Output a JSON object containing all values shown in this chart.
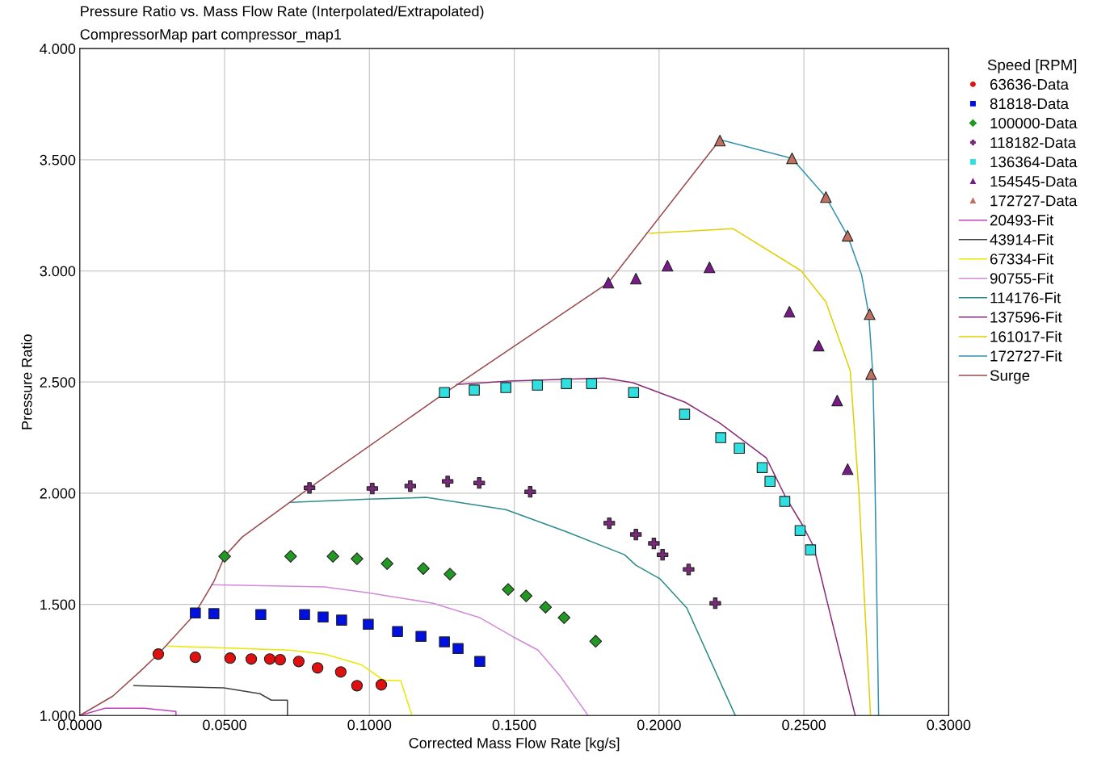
{
  "chart_data": {
    "type": "scatter",
    "title": "Pressure Ratio vs. Mass Flow Rate (Interpolated/Extrapolated)",
    "subtitle": "CompressorMap part compressor_map1",
    "xlabel": "Corrected Mass Flow Rate [kg/s]",
    "ylabel": "Pressure Ratio",
    "legend_title": "Speed [RPM]",
    "xlim": [
      0,
      0.3
    ],
    "ylim": [
      1,
      4
    ],
    "xticks": [
      {
        "value": 0,
        "label": "0.0000"
      },
      {
        "value": 0.05,
        "label": "0.0500"
      },
      {
        "value": 0.1,
        "label": "0.1000"
      },
      {
        "value": 0.15,
        "label": "0.1500"
      },
      {
        "value": 0.2,
        "label": "0.2000"
      },
      {
        "value": 0.25,
        "label": "0.2500"
      },
      {
        "value": 0.3,
        "label": "0.3000"
      }
    ],
    "yticks": [
      {
        "value": 1,
        "label": "1.000"
      },
      {
        "value": 1.5,
        "label": "1.500"
      },
      {
        "value": 2,
        "label": "2.000"
      },
      {
        "value": 2.5,
        "label": "2.500"
      },
      {
        "value": 3,
        "label": "3.000"
      },
      {
        "value": 3.5,
        "label": "3.500"
      },
      {
        "value": 4,
        "label": "4.000"
      }
    ],
    "grid": true,
    "legend": "right",
    "series": [
      {
        "name": "63636-Data",
        "marker": "circle",
        "color": "#e01010",
        "x": [
          0.0271,
          0.0399,
          0.0519,
          0.0592,
          0.0656,
          0.0692,
          0.0756,
          0.0821,
          0.0901,
          0.0957,
          0.1041
        ],
        "values": [
          1.276,
          1.262,
          1.258,
          1.254,
          1.254,
          1.251,
          1.243,
          1.214,
          1.196,
          1.134,
          1.138
        ]
      },
      {
        "name": "81818-Data",
        "marker": "square",
        "color": "#0010e0",
        "x": [
          0.0399,
          0.0463,
          0.0625,
          0.0776,
          0.084,
          0.0904,
          0.0996,
          0.1097,
          0.1178,
          0.1259,
          0.1306,
          0.1381
        ],
        "values": [
          1.461,
          1.458,
          1.454,
          1.454,
          1.443,
          1.429,
          1.41,
          1.378,
          1.356,
          1.331,
          1.301,
          1.243
        ]
      },
      {
        "name": "100000-Data",
        "marker": "diamond",
        "color": "#229922",
        "x": [
          0.05,
          0.0728,
          0.0874,
          0.0957,
          0.1061,
          0.1186,
          0.1278,
          0.1479,
          0.1541,
          0.1608,
          0.1672,
          0.1781
        ],
        "values": [
          1.716,
          1.716,
          1.716,
          1.705,
          1.683,
          1.661,
          1.636,
          1.567,
          1.538,
          1.487,
          1.44,
          1.334
        ]
      },
      {
        "name": "118182-Data",
        "marker": "cross",
        "color": "#7a2a7a",
        "x": [
          0.0793,
          0.101,
          0.1141,
          0.127,
          0.1379,
          0.1555,
          0.1828,
          0.192,
          0.1982,
          0.2012,
          0.2102,
          0.2194
        ],
        "values": [
          2.024,
          2.021,
          2.032,
          2.053,
          2.046,
          2.006,
          1.865,
          1.814,
          1.774,
          1.723,
          1.657,
          1.505
        ]
      },
      {
        "name": "136364-Data",
        "marker": "square",
        "color": "#30e0e0",
        "x": [
          0.1259,
          0.1362,
          0.1471,
          0.158,
          0.168,
          0.1767,
          0.1912,
          0.2088,
          0.2213,
          0.2277,
          0.2356,
          0.2383,
          0.2434,
          0.2487,
          0.2523
        ],
        "values": [
          2.453,
          2.464,
          2.475,
          2.486,
          2.493,
          2.493,
          2.453,
          2.355,
          2.25,
          2.202,
          2.115,
          2.053,
          1.963,
          1.832,
          1.745
        ]
      },
      {
        "name": "154545-Data",
        "marker": "triangle",
        "color": "#7a1a8a",
        "x": [
          0.1825,
          0.192,
          0.2029,
          0.2174,
          0.245,
          0.2551,
          0.2615,
          0.2651
        ],
        "values": [
          2.947,
          2.965,
          3.023,
          3.016,
          2.816,
          2.664,
          2.417,
          2.108
        ]
      },
      {
        "name": "172727-Data",
        "marker": "triangle",
        "color": "#c07060",
        "x": [
          0.221,
          0.2459,
          0.2576,
          0.2651,
          0.2727,
          0.2732
        ],
        "values": [
          3.586,
          3.506,
          3.332,
          3.158,
          2.805,
          2.536
        ]
      },
      {
        "name": "20493-Fit",
        "type": "line",
        "marker": "none",
        "color": "#c040c0",
        "x": [
          0,
          0.0087,
          0.0223,
          0.0332,
          0.0332
        ],
        "values": [
          1.0,
          1.033,
          1.033,
          1.018,
          1.0
        ]
      },
      {
        "name": "43914-Fit",
        "type": "line",
        "marker": "none",
        "color": "#404040",
        "x": [
          0.0187,
          0.0497,
          0.0622,
          0.0661,
          0.0717,
          0.0717
        ],
        "values": [
          1.134,
          1.124,
          1.098,
          1.069,
          1.069,
          1.0
        ]
      },
      {
        "name": "67334-Fit",
        "type": "line",
        "marker": "none",
        "color": "#e8e800",
        "x": [
          0.0304,
          0.0723,
          0.0846,
          0.0971,
          0.1047,
          0.1108,
          0.1147
        ],
        "values": [
          1.312,
          1.294,
          1.276,
          1.229,
          1.16,
          1.156,
          1.0
        ]
      },
      {
        "name": "90755-Fit",
        "type": "line",
        "marker": "none",
        "color": "#d08ad8",
        "x": [
          0.0455,
          0.0846,
          0.0996,
          0.122,
          0.1381,
          0.1493,
          0.1582,
          0.1658,
          0.1755
        ],
        "values": [
          1.588,
          1.578,
          1.552,
          1.505,
          1.44,
          1.356,
          1.294,
          1.178,
          1.0
        ]
      },
      {
        "name": "114176-Fit",
        "type": "line",
        "marker": "none",
        "color": "#2e8b8b",
        "x": [
          0.0728,
          0.0996,
          0.1195,
          0.1471,
          0.1677,
          0.1881,
          0.192,
          0.2004,
          0.2096,
          0.2263
        ],
        "values": [
          1.959,
          1.973,
          1.981,
          1.926,
          1.828,
          1.723,
          1.676,
          1.614,
          1.483,
          1.0
        ]
      },
      {
        "name": "137596-Fit",
        "type": "line",
        "marker": "none",
        "color": "#8b2a7a",
        "x": [
          0.1301,
          0.1482,
          0.1811,
          0.1909,
          0.209,
          0.221,
          0.237,
          0.2439,
          0.2495,
          0.2534,
          0.2579,
          0.2677
        ],
        "values": [
          2.489,
          2.504,
          2.518,
          2.497,
          2.409,
          2.315,
          2.159,
          1.977,
          1.857,
          1.759,
          1.519,
          1.0
        ]
      },
      {
        "name": "161017-Fit",
        "type": "line",
        "marker": "none",
        "color": "#e0d000",
        "x": [
          0.1968,
          0.2255,
          0.249,
          0.2576,
          0.266,
          0.269,
          0.273
        ],
        "values": [
          3.169,
          3.19,
          3.001,
          2.86,
          2.551,
          1.999,
          1.0
        ]
      },
      {
        "name": "172727-Fit",
        "type": "line",
        "marker": "none",
        "color": "#3090b0",
        "x": [
          0.221,
          0.2459,
          0.2576,
          0.2651,
          0.2699,
          0.2724,
          0.2738,
          0.2744,
          0.2758
        ],
        "values": [
          3.59,
          3.506,
          3.332,
          3.158,
          2.983,
          2.805,
          2.536,
          2.184,
          1.0
        ]
      },
      {
        "name": "Surge",
        "type": "line",
        "marker": "none",
        "color": "#9a4a4a",
        "x": [
          0,
          0.0114,
          0.0212,
          0.0271,
          0.0394,
          0.0463,
          0.05,
          0.0561,
          0.0793,
          0.1259,
          0.1825,
          0.221
        ],
        "values": [
          1.0,
          1.087,
          1.203,
          1.276,
          1.451,
          1.603,
          1.716,
          1.803,
          2.024,
          2.449,
          2.947,
          3.59
        ]
      }
    ]
  }
}
